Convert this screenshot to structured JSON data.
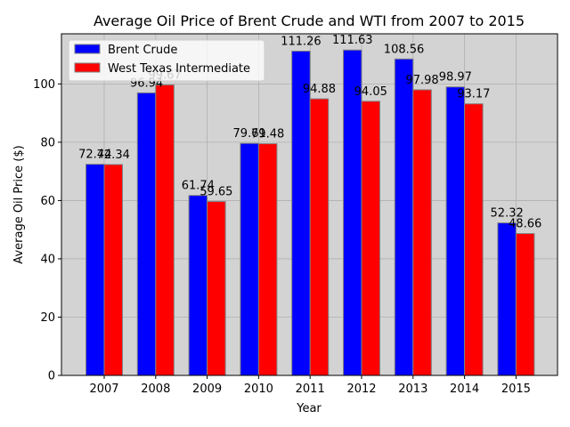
{
  "chart_data": {
    "type": "bar",
    "title": "Average Oil Price of Brent Crude and WTI from 2007 to 2015",
    "xlabel": "Year",
    "ylabel": "Average Oil Price ($)",
    "categories": [
      "2007",
      "2008",
      "2009",
      "2010",
      "2011",
      "2012",
      "2013",
      "2014",
      "2015"
    ],
    "series": [
      {
        "name": "Brent Crude",
        "color": "#0000ff",
        "values": [
          72.44,
          96.94,
          61.74,
          79.61,
          111.26,
          111.63,
          108.56,
          98.97,
          52.32
        ]
      },
      {
        "name": "West Texas Intermediate",
        "color": "#ff0000",
        "values": [
          72.34,
          99.67,
          59.65,
          79.48,
          94.88,
          94.05,
          97.98,
          93.17,
          48.66
        ]
      }
    ],
    "ylim": [
      0,
      117.2
    ],
    "yticks": [
      0,
      20,
      40,
      60,
      80,
      100
    ],
    "grid": true,
    "legend_position": "top-left",
    "plot_background": "#d3d3d3",
    "bar_edge_color": "#808080"
  }
}
